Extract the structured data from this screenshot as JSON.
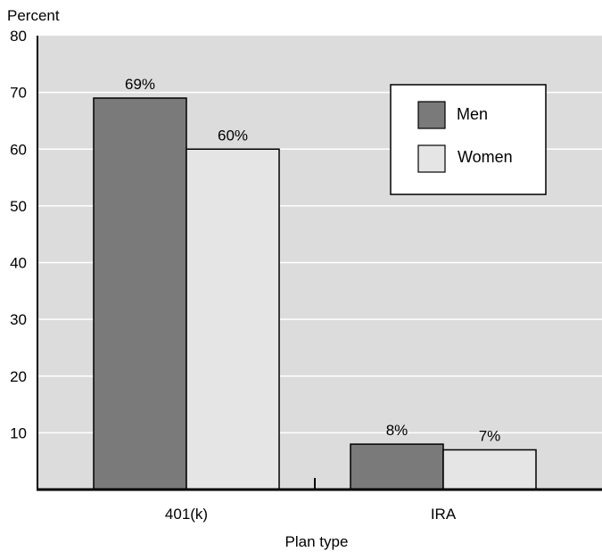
{
  "chart_data": {
    "type": "bar",
    "title": "",
    "ylabel": "Percent",
    "xlabel": "Plan type",
    "categories": [
      "401(k)",
      "IRA"
    ],
    "series": [
      {
        "name": "Men",
        "values": [
          69,
          8
        ],
        "labels": [
          "69%",
          "8%"
        ],
        "color": "#7a7a7a"
      },
      {
        "name": "Women",
        "values": [
          60,
          7
        ],
        "labels": [
          "60%",
          "7%"
        ],
        "color": "#e5e5e5"
      }
    ],
    "yticks": [
      10,
      20,
      30,
      40,
      50,
      60,
      70,
      80
    ],
    "ylim": [
      0,
      80
    ],
    "grid": true,
    "legend_position": "top-right",
    "colors": {
      "plot_background": "#dcdcdc",
      "gridline": "#ffffff",
      "axis": "#000000",
      "bar_outline": "#000000"
    }
  }
}
